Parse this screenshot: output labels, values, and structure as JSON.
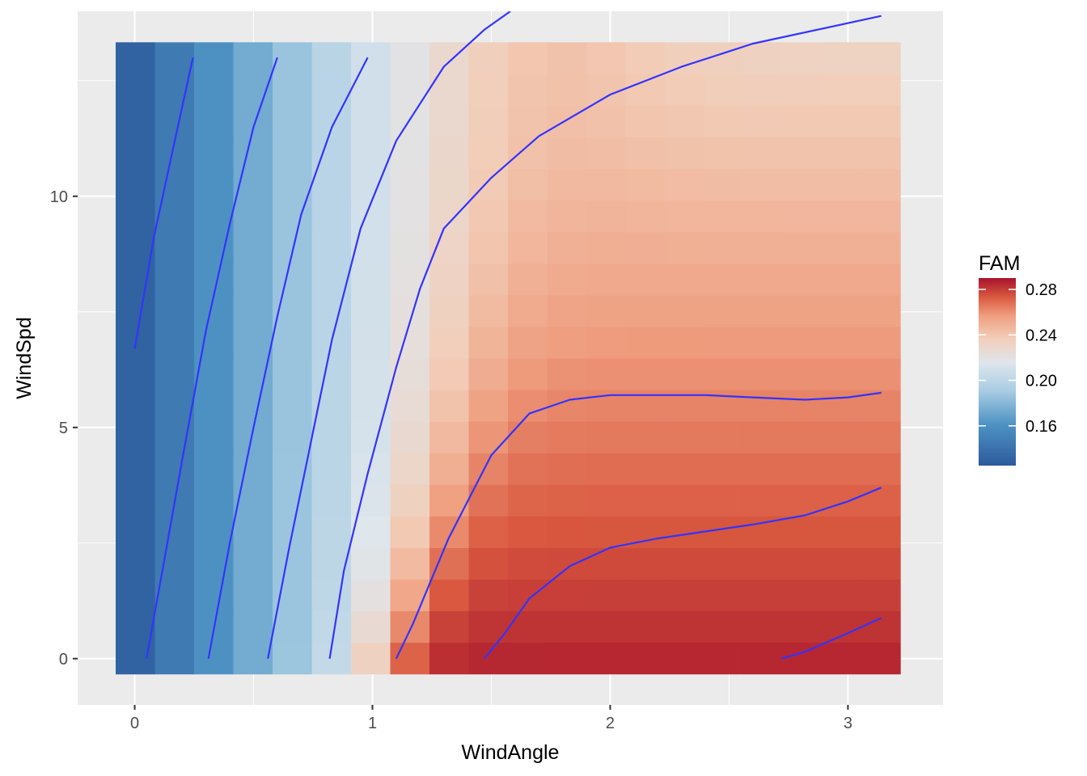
{
  "chart_data": {
    "type": "heatmap",
    "xlabel": "WindAngle",
    "ylabel": "WindSpd",
    "x_ticks": [
      0,
      1,
      2,
      3
    ],
    "y_ticks": [
      0,
      5,
      10
    ],
    "xlim": [
      -0.24,
      3.4
    ],
    "ylim": [
      -1.0,
      14.0
    ],
    "grid": true,
    "tiles": {
      "x_min": -0.08,
      "x_max": 3.22,
      "n_cols": 20,
      "y_min": -0.33,
      "y_max": 13.33,
      "n_rows": 20
    },
    "fill_variable": "FAM",
    "fill_range": [
      0.125,
      0.29
    ],
    "contour_color": "#3333ff",
    "contours": [
      [
        [
          0.0,
          6.7
        ],
        [
          0.08,
          9.1
        ],
        [
          0.16,
          11.0
        ],
        [
          0.245,
          13.0
        ]
      ],
      [
        [
          0.05,
          0.0
        ],
        [
          0.12,
          2.0
        ],
        [
          0.2,
          4.3
        ],
        [
          0.3,
          7.1
        ],
        [
          0.4,
          9.4
        ],
        [
          0.5,
          11.5
        ],
        [
          0.6,
          13.0
        ]
      ],
      [
        [
          0.31,
          0.0
        ],
        [
          0.4,
          2.5
        ],
        [
          0.5,
          5.0
        ],
        [
          0.6,
          7.4
        ],
        [
          0.7,
          9.6
        ],
        [
          0.83,
          11.5
        ],
        [
          0.98,
          13.0
        ]
      ],
      [
        [
          0.56,
          0.0
        ],
        [
          0.65,
          2.4
        ],
        [
          0.75,
          4.9
        ],
        [
          0.83,
          6.9
        ],
        [
          0.95,
          9.3
        ],
        [
          1.1,
          11.2
        ],
        [
          1.3,
          12.8
        ],
        [
          1.47,
          13.6
        ],
        [
          1.58,
          14.0
        ]
      ],
      [
        [
          0.82,
          0.0
        ],
        [
          0.88,
          1.9
        ],
        [
          0.98,
          4.0
        ],
        [
          1.1,
          6.3
        ],
        [
          1.2,
          8.0
        ],
        [
          1.3,
          9.3
        ],
        [
          1.5,
          10.4
        ],
        [
          1.7,
          11.3
        ],
        [
          2.0,
          12.2
        ],
        [
          2.3,
          12.8
        ],
        [
          2.6,
          13.3
        ],
        [
          3.14,
          13.9
        ]
      ],
      [
        [
          1.1,
          0.0
        ],
        [
          1.17,
          0.75
        ],
        [
          1.32,
          2.6
        ],
        [
          1.5,
          4.4
        ],
        [
          1.66,
          5.3
        ],
        [
          1.83,
          5.6
        ],
        [
          2.0,
          5.7
        ],
        [
          2.2,
          5.7
        ],
        [
          2.4,
          5.7
        ],
        [
          2.6,
          5.65
        ],
        [
          2.82,
          5.6
        ],
        [
          3.0,
          5.65
        ],
        [
          3.14,
          5.75
        ]
      ],
      [
        [
          1.47,
          0.0
        ],
        [
          1.55,
          0.5
        ],
        [
          1.66,
          1.3
        ],
        [
          1.83,
          2.0
        ],
        [
          2.0,
          2.4
        ],
        [
          2.2,
          2.6
        ],
        [
          2.4,
          2.75
        ],
        [
          2.6,
          2.9
        ],
        [
          2.82,
          3.1
        ],
        [
          3.0,
          3.4
        ],
        [
          3.14,
          3.7
        ]
      ],
      [
        [
          2.72,
          0.0
        ],
        [
          2.82,
          0.15
        ],
        [
          3.0,
          0.55
        ],
        [
          3.14,
          0.88
        ]
      ]
    ],
    "legend": {
      "title": "FAM",
      "labels": [
        "0.28",
        "0.24",
        "0.20",
        "0.16"
      ],
      "values": [
        0.28,
        0.24,
        0.2,
        0.16
      ],
      "placement": "right"
    }
  }
}
